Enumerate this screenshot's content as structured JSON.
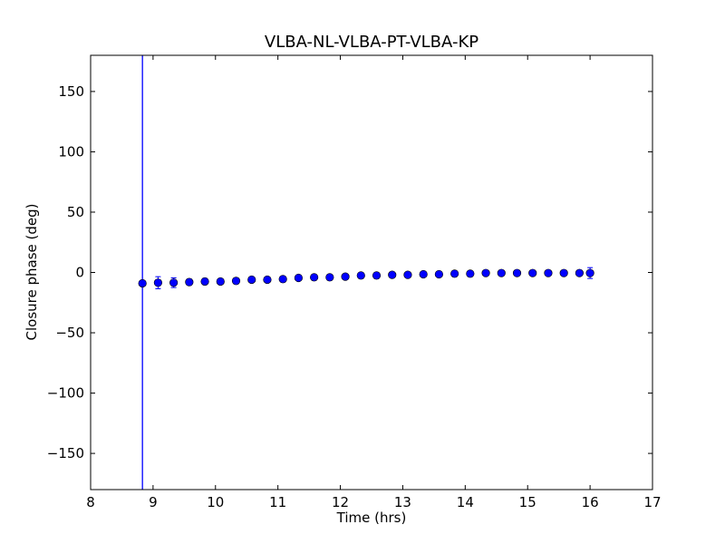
{
  "chart_data": {
    "type": "scatter",
    "title": "VLBA-NL-VLBA-PT-VLBA-KP",
    "xlabel": "Time (hrs)",
    "ylabel": "Closure phase (deg)",
    "xlim": [
      8,
      17
    ],
    "ylim": [
      -180,
      180
    ],
    "xticks": [
      8,
      9,
      10,
      11,
      12,
      13,
      14,
      15,
      16,
      17
    ],
    "yticks": [
      -150,
      -100,
      -50,
      0,
      50,
      100,
      150
    ],
    "ytick_labels": [
      "−150",
      "−100",
      "−50",
      "0",
      "50",
      "100",
      "150"
    ],
    "grid": false,
    "marker_color": "#0000ff",
    "vertical_line": {
      "x": 8.83,
      "color": "#0000ff"
    },
    "series": [
      {
        "points": [
          {
            "x": 8.83,
            "y": -9.0,
            "err": 1.5
          },
          {
            "x": 9.08,
            "y": -8.5,
            "err": 5.0
          },
          {
            "x": 9.33,
            "y": -8.5,
            "err": 4.0
          },
          {
            "x": 9.58,
            "y": -8.0,
            "err": 2.5
          },
          {
            "x": 9.83,
            "y": -7.5,
            "err": 2.5
          },
          {
            "x": 10.08,
            "y": -7.5,
            "err": 2.0
          },
          {
            "x": 10.33,
            "y": -7.0,
            "err": 1.5
          },
          {
            "x": 10.58,
            "y": -6.0,
            "err": 1.5
          },
          {
            "x": 10.83,
            "y": -6.0,
            "err": 1.5
          },
          {
            "x": 11.08,
            "y": -5.5,
            "err": 1.5
          },
          {
            "x": 11.33,
            "y": -4.5,
            "err": 1.5
          },
          {
            "x": 11.58,
            "y": -4.0,
            "err": 1.5
          },
          {
            "x": 11.83,
            "y": -4.0,
            "err": 1.5
          },
          {
            "x": 12.08,
            "y": -3.5,
            "err": 1.5
          },
          {
            "x": 12.33,
            "y": -2.5,
            "err": 1.5
          },
          {
            "x": 12.58,
            "y": -2.5,
            "err": 1.5
          },
          {
            "x": 12.83,
            "y": -2.0,
            "err": 1.5
          },
          {
            "x": 13.08,
            "y": -2.0,
            "err": 1.5
          },
          {
            "x": 13.33,
            "y": -1.5,
            "err": 1.5
          },
          {
            "x": 13.58,
            "y": -1.5,
            "err": 1.5
          },
          {
            "x": 13.83,
            "y": -1.0,
            "err": 1.5
          },
          {
            "x": 14.08,
            "y": -1.0,
            "err": 1.5
          },
          {
            "x": 14.33,
            "y": -0.5,
            "err": 1.5
          },
          {
            "x": 14.58,
            "y": -0.5,
            "err": 1.5
          },
          {
            "x": 14.83,
            "y": -0.5,
            "err": 1.5
          },
          {
            "x": 15.08,
            "y": -0.5,
            "err": 1.5
          },
          {
            "x": 15.33,
            "y": -0.5,
            "err": 1.5
          },
          {
            "x": 15.58,
            "y": -0.5,
            "err": 1.5
          },
          {
            "x": 15.83,
            "y": -0.5,
            "err": 1.5
          },
          {
            "x": 16.0,
            "y": -0.5,
            "err": 4.5
          }
        ]
      }
    ]
  }
}
